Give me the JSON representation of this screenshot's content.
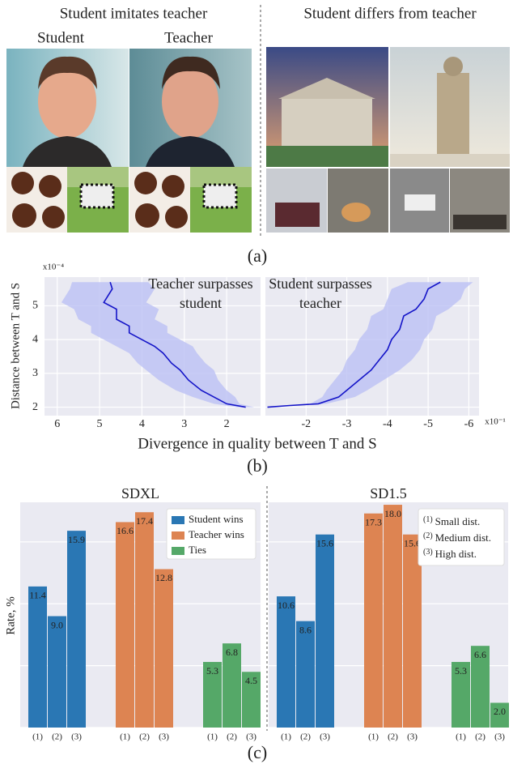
{
  "panel_a": {
    "left_title": "Student imitates teacher",
    "left_labels": [
      "Student",
      "Teacher"
    ],
    "right_title": "Student differs from teacher",
    "caption": "(a)"
  },
  "chart_data": [
    {
      "type": "line",
      "y_label": "Distance between T and S",
      "y_multiplier": "x10⁻⁴",
      "x_label": "Divergence in quality between T and S",
      "caption": "(b)",
      "ylim": [
        1.75,
        5.85
      ],
      "yticks": [
        2,
        3,
        4,
        5
      ],
      "grid": true,
      "color": "#1414c8",
      "band_color": "#bcc0f4",
      "panels": [
        {
          "annotation": [
            "Teacher surpasses",
            "student"
          ],
          "xlim": [
            6.3,
            1.2
          ],
          "xticks": [
            6,
            5,
            4,
            3,
            2
          ],
          "x": [
            1.55,
            2.0,
            2.3,
            2.6,
            2.9,
            3.1,
            3.3,
            3.5,
            3.7,
            4.0,
            4.3,
            4.3,
            4.6,
            4.6,
            4.9,
            4.8,
            4.7,
            4.75
          ],
          "y": [
            2.0,
            2.1,
            2.3,
            2.5,
            2.8,
            3.1,
            3.3,
            3.6,
            3.8,
            4.0,
            4.2,
            4.4,
            4.6,
            4.9,
            5.1,
            5.3,
            5.5,
            5.7
          ],
          "band_low": [
            1.35,
            1.7,
            1.8,
            2.0,
            2.2,
            2.3,
            2.5,
            2.7,
            2.8,
            3.1,
            3.4,
            3.4,
            3.7,
            3.6,
            3.9,
            3.8,
            3.7,
            3.85
          ],
          "band_high": [
            1.75,
            2.3,
            2.8,
            3.2,
            3.6,
            3.9,
            4.1,
            4.3,
            4.6,
            4.9,
            5.2,
            5.2,
            5.5,
            5.6,
            5.9,
            5.8,
            5.7,
            5.65
          ]
        },
        {
          "annotation": [
            "Student surpasses",
            "teacher"
          ],
          "xlim": [
            -1.0,
            -6.25
          ],
          "xticks": [
            -2,
            -3,
            -4,
            -5,
            -6
          ],
          "x_multiplier": "x10⁻¹",
          "x": [
            -1.05,
            -1.6,
            -2.3,
            -2.8,
            -3.0,
            -3.3,
            -3.6,
            -3.8,
            -4.0,
            -4.1,
            -4.3,
            -4.4,
            -4.7,
            -4.9,
            -5.0,
            -5.3
          ],
          "y": [
            2.0,
            2.05,
            2.1,
            2.3,
            2.5,
            2.8,
            3.1,
            3.4,
            3.7,
            4.0,
            4.3,
            4.7,
            4.9,
            5.2,
            5.5,
            5.7
          ],
          "band_low": [
            -1.0,
            -1.5,
            -2.1,
            -2.4,
            -2.5,
            -2.7,
            -2.9,
            -3.0,
            -3.2,
            -3.3,
            -3.5,
            -3.6,
            -3.9,
            -4.0,
            -4.1,
            -4.5
          ],
          "band_high": [
            -1.1,
            -1.7,
            -2.5,
            -3.2,
            -3.5,
            -3.9,
            -4.3,
            -4.6,
            -4.8,
            -4.9,
            -5.1,
            -5.2,
            -5.5,
            -5.8,
            -5.9,
            -6.1
          ]
        }
      ]
    },
    {
      "type": "bar",
      "title": "SDXL",
      "y_label": "Rate, %",
      "caption": "(c)",
      "categories": [
        "(1)",
        "(2)",
        "(3)"
      ],
      "ylim": [
        0,
        18.2
      ],
      "yticks": [
        0,
        5,
        10,
        15
      ],
      "grid": true,
      "series": [
        {
          "name": "Student wins",
          "color": "#2a77b4",
          "values": [
            11.4,
            9,
            15.9
          ],
          "value_labels": [
            "11.4",
            "9.0",
            "15.9"
          ]
        },
        {
          "name": "Teacher wins",
          "color": "#dd8452",
          "values": [
            16.6,
            17.4,
            12.8
          ],
          "value_labels": [
            "16.6",
            "17.4",
            "12.8"
          ]
        },
        {
          "name": "Ties",
          "color": "#55a868",
          "values": [
            5.3,
            6.8,
            4.5
          ],
          "value_labels": [
            "5.3",
            "6.8",
            "4.5"
          ]
        }
      ]
    },
    {
      "type": "bar",
      "title": "SD1.5",
      "categories": [
        "(1)",
        "(2)",
        "(3)"
      ],
      "legend_notes": [
        "Small dist.",
        "Medium dist.",
        "High dist."
      ],
      "ylim": [
        0,
        18.2
      ],
      "yticks": [
        0,
        5,
        10,
        15
      ],
      "grid": true,
      "series": [
        {
          "color": "#2a77b4",
          "values": [
            10.6,
            8.6,
            15.6
          ],
          "value_labels": [
            "10.6",
            "8.6",
            "15.6"
          ]
        },
        {
          "color": "#dd8452",
          "values": [
            17.3,
            18,
            15.6
          ],
          "value_labels": [
            "17.3",
            "18.0",
            "15.6"
          ]
        },
        {
          "color": "#55a868",
          "values": [
            5.3,
            6.6,
            2
          ],
          "value_labels": [
            "5.3",
            "6.6",
            "2.0"
          ]
        }
      ]
    }
  ]
}
